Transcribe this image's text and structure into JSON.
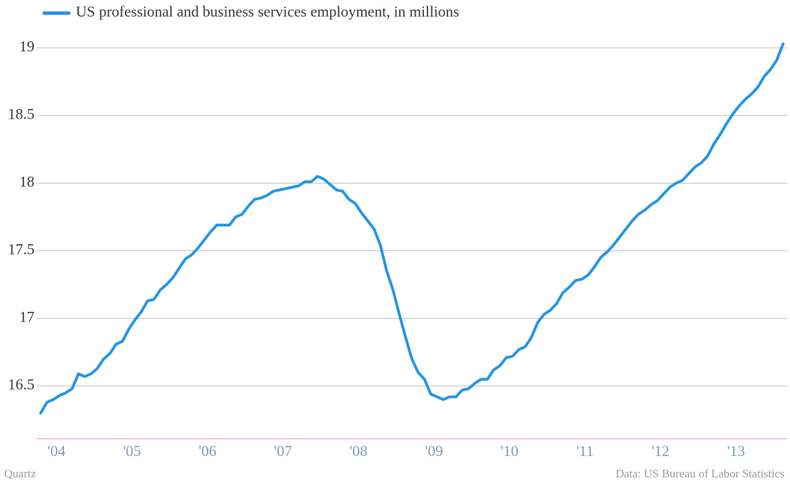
{
  "chart_data": {
    "type": "line",
    "source": "Data: US Bureau of Labor Statistics",
    "credit": "Quartz",
    "categories": [
      "'04",
      null,
      null,
      null,
      null,
      null,
      null,
      null,
      null,
      null,
      null,
      null,
      "'05",
      null,
      null,
      null,
      null,
      null,
      null,
      null,
      null,
      null,
      null,
      null,
      "'06",
      null,
      null,
      null,
      null,
      null,
      null,
      null,
      null,
      null,
      null,
      null,
      "'07",
      null,
      null,
      null,
      null,
      null,
      null,
      null,
      null,
      null,
      null,
      null,
      "'08",
      null,
      null,
      null,
      null,
      null,
      null,
      null,
      null,
      null,
      null,
      null,
      "'09",
      null,
      null,
      null,
      null,
      null,
      null,
      null,
      null,
      null,
      null,
      null,
      "'10",
      null,
      null,
      null,
      null,
      null,
      null,
      null,
      null,
      null,
      null,
      null,
      "'11",
      null,
      null,
      null,
      null,
      null,
      null,
      null,
      null,
      null,
      null,
      null,
      "'12",
      null,
      null,
      null,
      null,
      null,
      null,
      null,
      null,
      null,
      null,
      null,
      "'13",
      null,
      null,
      null,
      null,
      null,
      null,
      null,
      null,
      null,
      null
    ],
    "series": [
      {
        "name": "US professional and business services employment, in millions",
        "color": "#2394e6",
        "values": [
          16.3,
          16.38,
          16.4,
          16.43,
          16.45,
          16.48,
          16.59,
          16.57,
          16.59,
          16.63,
          16.7,
          16.74,
          16.81,
          16.83,
          16.92,
          16.99,
          17.05,
          17.13,
          17.14,
          17.21,
          17.25,
          17.3,
          17.37,
          17.44,
          17.47,
          17.52,
          17.58,
          17.64,
          17.69,
          17.69,
          17.69,
          17.75,
          17.77,
          17.83,
          17.88,
          17.89,
          17.91,
          17.94,
          17.95,
          17.96,
          17.97,
          17.98,
          18.01,
          18.01,
          18.05,
          18.03,
          17.99,
          17.95,
          17.94,
          17.88,
          17.85,
          17.78,
          17.72,
          17.66,
          17.54,
          17.35,
          17.21,
          17.03,
          16.86,
          16.7,
          16.6,
          16.55,
          16.44,
          16.42,
          16.4,
          16.42,
          16.42,
          16.47,
          16.48,
          16.52,
          16.55,
          16.55,
          16.62,
          16.65,
          16.71,
          16.72,
          16.77,
          16.79,
          16.86,
          16.97,
          17.03,
          17.06,
          17.11,
          17.19,
          17.23,
          17.28,
          17.29,
          17.32,
          17.38,
          17.45,
          17.49,
          17.54,
          17.6,
          17.66,
          17.72,
          17.77,
          17.8,
          17.84,
          17.87,
          17.92,
          17.97,
          18.0,
          18.02,
          18.07,
          18.12,
          18.15,
          18.2,
          18.29,
          18.36,
          18.44,
          18.51,
          18.57,
          18.62,
          18.66,
          18.71,
          18.79,
          18.84,
          18.91,
          19.03
        ]
      }
    ],
    "ylim": [
      16.11,
      19.15
    ],
    "yticks": [
      16.5,
      17,
      17.5,
      18,
      18.5,
      19
    ],
    "grid": true,
    "legend": "top-left"
  }
}
